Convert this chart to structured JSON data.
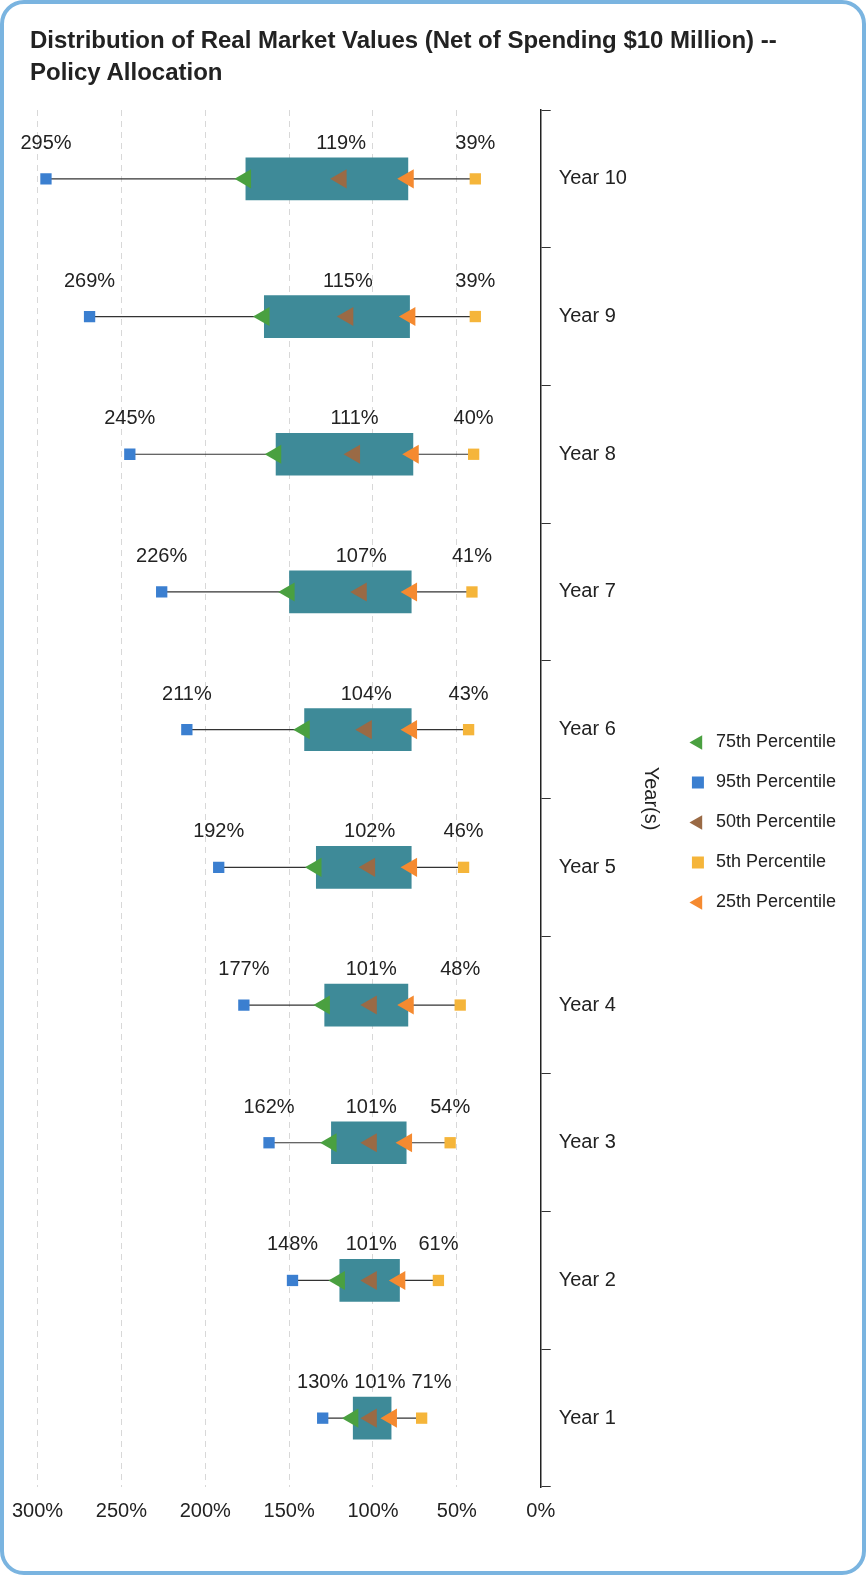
{
  "chart_data": {
    "type": "bar",
    "orientation": "horizontal",
    "title": "Distribution of Real Market Values (Net of Spending $10 Million) -- Policy Allocation",
    "ylabel": "Year(s)",
    "categories": [
      "Year 10",
      "Year 9",
      "Year 8",
      "Year 7",
      "Year 6",
      "Year 5",
      "Year 4",
      "Year 3",
      "Year 2",
      "Year 1"
    ],
    "color": "#3e8a98",
    "base": [
      79,
      78,
      76,
      77,
      77,
      77,
      79,
      80,
      84,
      89
    ],
    "values": [
      97,
      87,
      82,
      73,
      64,
      57,
      50,
      45,
      36,
      23
    ],
    "series": [
      {
        "type": "scatter",
        "name": "75th Percentile",
        "color": "#4aa040",
        "marker": "triangle",
        "values": [
          176,
          165,
          158,
          150,
          141,
          134,
          129,
          125,
          120,
          112
        ]
      },
      {
        "type": "scatter",
        "name": "95th Percentile",
        "color": "#3b7fd0",
        "marker": "square",
        "values": [
          295,
          269,
          245,
          226,
          211,
          192,
          177,
          162,
          148,
          130
        ],
        "value_labels": [
          "295%",
          "269%",
          "245%",
          "226%",
          "211%",
          "192%",
          "177%",
          "162%",
          "148%",
          "130%"
        ]
      },
      {
        "type": "scatter",
        "name": "50th Percentile",
        "color": "#9a6a45",
        "marker": "triangle",
        "values": [
          119,
          115,
          111,
          107,
          104,
          102,
          101,
          101,
          101,
          101
        ],
        "value_labels": [
          "119%",
          "115%",
          "111%",
          "107%",
          "104%",
          "102%",
          "101%",
          "101%",
          "101%",
          "101%"
        ]
      },
      {
        "type": "scatter",
        "name": "5th Percentile",
        "color": "#f5b53a",
        "marker": "square",
        "values": [
          39,
          39,
          40,
          41,
          43,
          46,
          48,
          54,
          61,
          71
        ],
        "value_labels": [
          "39%",
          "39%",
          "40%",
          "41%",
          "43%",
          "46%",
          "48%",
          "54%",
          "61%",
          "71%"
        ]
      },
      {
        "type": "scatter",
        "name": "25th Percentile",
        "color": "#f58a30",
        "marker": "triangle",
        "values": [
          79,
          78,
          76,
          77,
          77,
          77,
          79,
          80,
          84,
          89
        ]
      }
    ],
    "xlim": [
      300,
      0
    ],
    "xticks": [
      {
        "value": 300,
        "label": "300%"
      },
      {
        "value": 250,
        "label": "250%"
      },
      {
        "value": 200,
        "label": "200%"
      },
      {
        "value": 150,
        "label": "150%"
      },
      {
        "value": 100,
        "label": "100%"
      },
      {
        "value": 50,
        "label": "50%"
      },
      {
        "value": 0,
        "label": "0%"
      }
    ],
    "grid": "x",
    "legend": "right"
  }
}
